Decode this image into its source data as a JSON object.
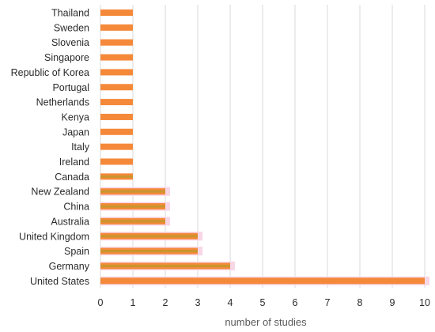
{
  "chart_data": {
    "type": "bar",
    "orientation": "horizontal",
    "title": "",
    "xlabel": "number of studies",
    "ylabel": "",
    "xlim": [
      0,
      10
    ],
    "xticks": [
      0,
      1,
      2,
      3,
      4,
      5,
      6,
      7,
      8,
      9,
      10
    ],
    "grid": "vertical",
    "categories": [
      "Thailand",
      "Sweden",
      "Slovenia",
      "Singapore",
      "Republic of Korea",
      "Portugal",
      "Netherlands",
      "Kenya",
      "Japan",
      "Italy",
      "Ireland",
      "Canada",
      "New Zealand",
      "China",
      "Australia",
      "United Kingdom",
      "Spain",
      "Germany",
      "United States"
    ],
    "values": [
      1,
      1,
      1,
      1,
      1,
      1,
      1,
      1,
      1,
      1,
      1,
      1,
      2,
      2,
      2,
      3,
      3,
      4,
      10
    ],
    "colors": {
      "bar": "#f5893a",
      "bar_inner": "#c8962e",
      "bar_shadow": "#f7d6e6",
      "grid": "#d9d9d9",
      "text": "#2b2b2b",
      "axis_title": "#595959"
    }
  }
}
